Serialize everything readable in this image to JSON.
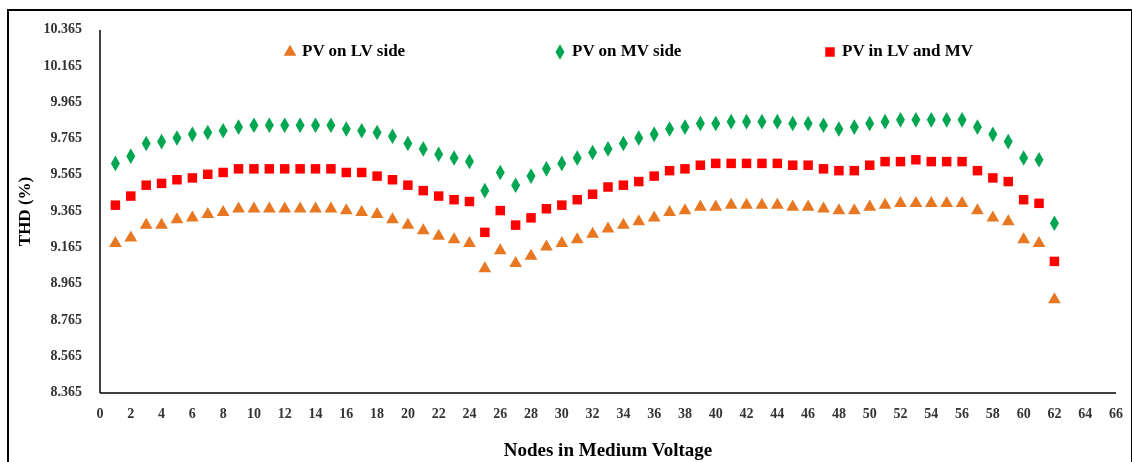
{
  "chart_data": {
    "type": "scatter",
    "xlabel": "Nodes in Medium Voltage",
    "ylabel": "THD (%)",
    "x": [
      1,
      2,
      3,
      4,
      5,
      6,
      7,
      8,
      9,
      10,
      11,
      12,
      13,
      14,
      15,
      16,
      17,
      18,
      19,
      20,
      21,
      22,
      23,
      24,
      25,
      26,
      27,
      28,
      29,
      30,
      31,
      32,
      33,
      34,
      35,
      36,
      37,
      38,
      39,
      40,
      41,
      42,
      43,
      44,
      45,
      46,
      47,
      48,
      49,
      50,
      51,
      52,
      53,
      54,
      55,
      56,
      57,
      58,
      59,
      60,
      61,
      62
    ],
    "series": [
      {
        "name": "PV on LV side",
        "color": "#e87722",
        "marker": "triangle",
        "values": [
          9.19,
          9.22,
          9.29,
          9.29,
          9.32,
          9.33,
          9.35,
          9.36,
          9.38,
          9.38,
          9.38,
          9.38,
          9.38,
          9.38,
          9.38,
          9.37,
          9.36,
          9.35,
          9.32,
          9.29,
          9.26,
          9.23,
          9.21,
          9.19,
          9.05,
          9.15,
          9.08,
          9.12,
          9.17,
          9.19,
          9.21,
          9.24,
          9.27,
          9.29,
          9.31,
          9.33,
          9.36,
          9.37,
          9.39,
          9.39,
          9.4,
          9.4,
          9.4,
          9.4,
          9.39,
          9.39,
          9.38,
          9.37,
          9.37,
          9.39,
          9.4,
          9.41,
          9.41,
          9.41,
          9.41,
          9.41,
          9.37,
          9.33,
          9.31,
          9.21,
          9.19,
          8.88
        ]
      },
      {
        "name": "PV on MV side",
        "color": "#00a650",
        "marker": "diamond",
        "values": [
          9.63,
          9.67,
          9.74,
          9.75,
          9.77,
          9.79,
          9.8,
          9.81,
          9.83,
          9.84,
          9.84,
          9.84,
          9.84,
          9.84,
          9.84,
          9.82,
          9.81,
          9.8,
          9.78,
          9.74,
          9.71,
          9.68,
          9.66,
          9.64,
          9.48,
          9.58,
          9.51,
          9.56,
          9.6,
          9.63,
          9.66,
          9.69,
          9.71,
          9.74,
          9.77,
          9.79,
          9.82,
          9.83,
          9.85,
          9.85,
          9.86,
          9.86,
          9.86,
          9.86,
          9.85,
          9.85,
          9.84,
          9.82,
          9.83,
          9.85,
          9.86,
          9.87,
          9.87,
          9.87,
          9.87,
          9.87,
          9.83,
          9.79,
          9.75,
          9.66,
          9.65,
          9.3
        ]
      },
      {
        "name": "PV in LV and MV",
        "color": "#ff0000",
        "marker": "square",
        "values": [
          9.4,
          9.45,
          9.51,
          9.52,
          9.54,
          9.55,
          9.57,
          9.58,
          9.6,
          9.6,
          9.6,
          9.6,
          9.6,
          9.6,
          9.6,
          9.58,
          9.58,
          9.56,
          9.54,
          9.51,
          9.48,
          9.45,
          9.43,
          9.42,
          9.25,
          9.37,
          9.29,
          9.33,
          9.38,
          9.4,
          9.43,
          9.46,
          9.5,
          9.51,
          9.53,
          9.56,
          9.59,
          9.6,
          9.62,
          9.63,
          9.63,
          9.63,
          9.63,
          9.63,
          9.62,
          9.62,
          9.6,
          9.59,
          9.59,
          9.62,
          9.64,
          9.64,
          9.65,
          9.64,
          9.64,
          9.64,
          9.59,
          9.55,
          9.53,
          9.43,
          9.41,
          9.09
        ]
      }
    ],
    "xlim": [
      0,
      66
    ],
    "xticks": [
      0,
      2,
      4,
      6,
      8,
      10,
      12,
      14,
      16,
      18,
      20,
      22,
      24,
      26,
      28,
      30,
      32,
      34,
      36,
      38,
      40,
      42,
      44,
      46,
      48,
      50,
      52,
      54,
      56,
      58,
      60,
      62,
      64,
      66
    ],
    "ylim": [
      8.365,
      10.365
    ],
    "yticks": [
      8.365,
      8.565,
      8.765,
      8.965,
      9.165,
      9.365,
      9.565,
      9.765,
      9.965,
      10.165,
      10.365
    ],
    "grid": false,
    "legend": "top"
  }
}
